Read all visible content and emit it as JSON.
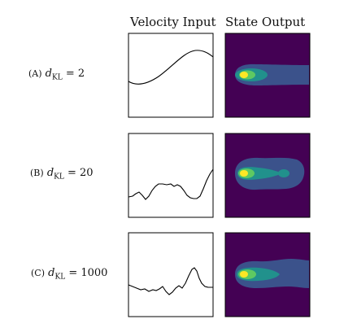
{
  "headers": {
    "velocity": "Velocity Input",
    "state": "State Output"
  },
  "rows": [
    {
      "letter": "(A)",
      "var": "d",
      "sub": "KL",
      "eq": "= 2"
    },
    {
      "letter": "(B)",
      "var": "d",
      "sub": "KL",
      "eq": "= 20"
    },
    {
      "letter": "(C)",
      "var": "d",
      "sub": "KL",
      "eq": "= 1000"
    }
  ],
  "colors": {
    "background": "#440154",
    "band1": "#3b528b",
    "band2": "#21918c",
    "band3": "#5ec962",
    "core": "#fde725"
  }
}
